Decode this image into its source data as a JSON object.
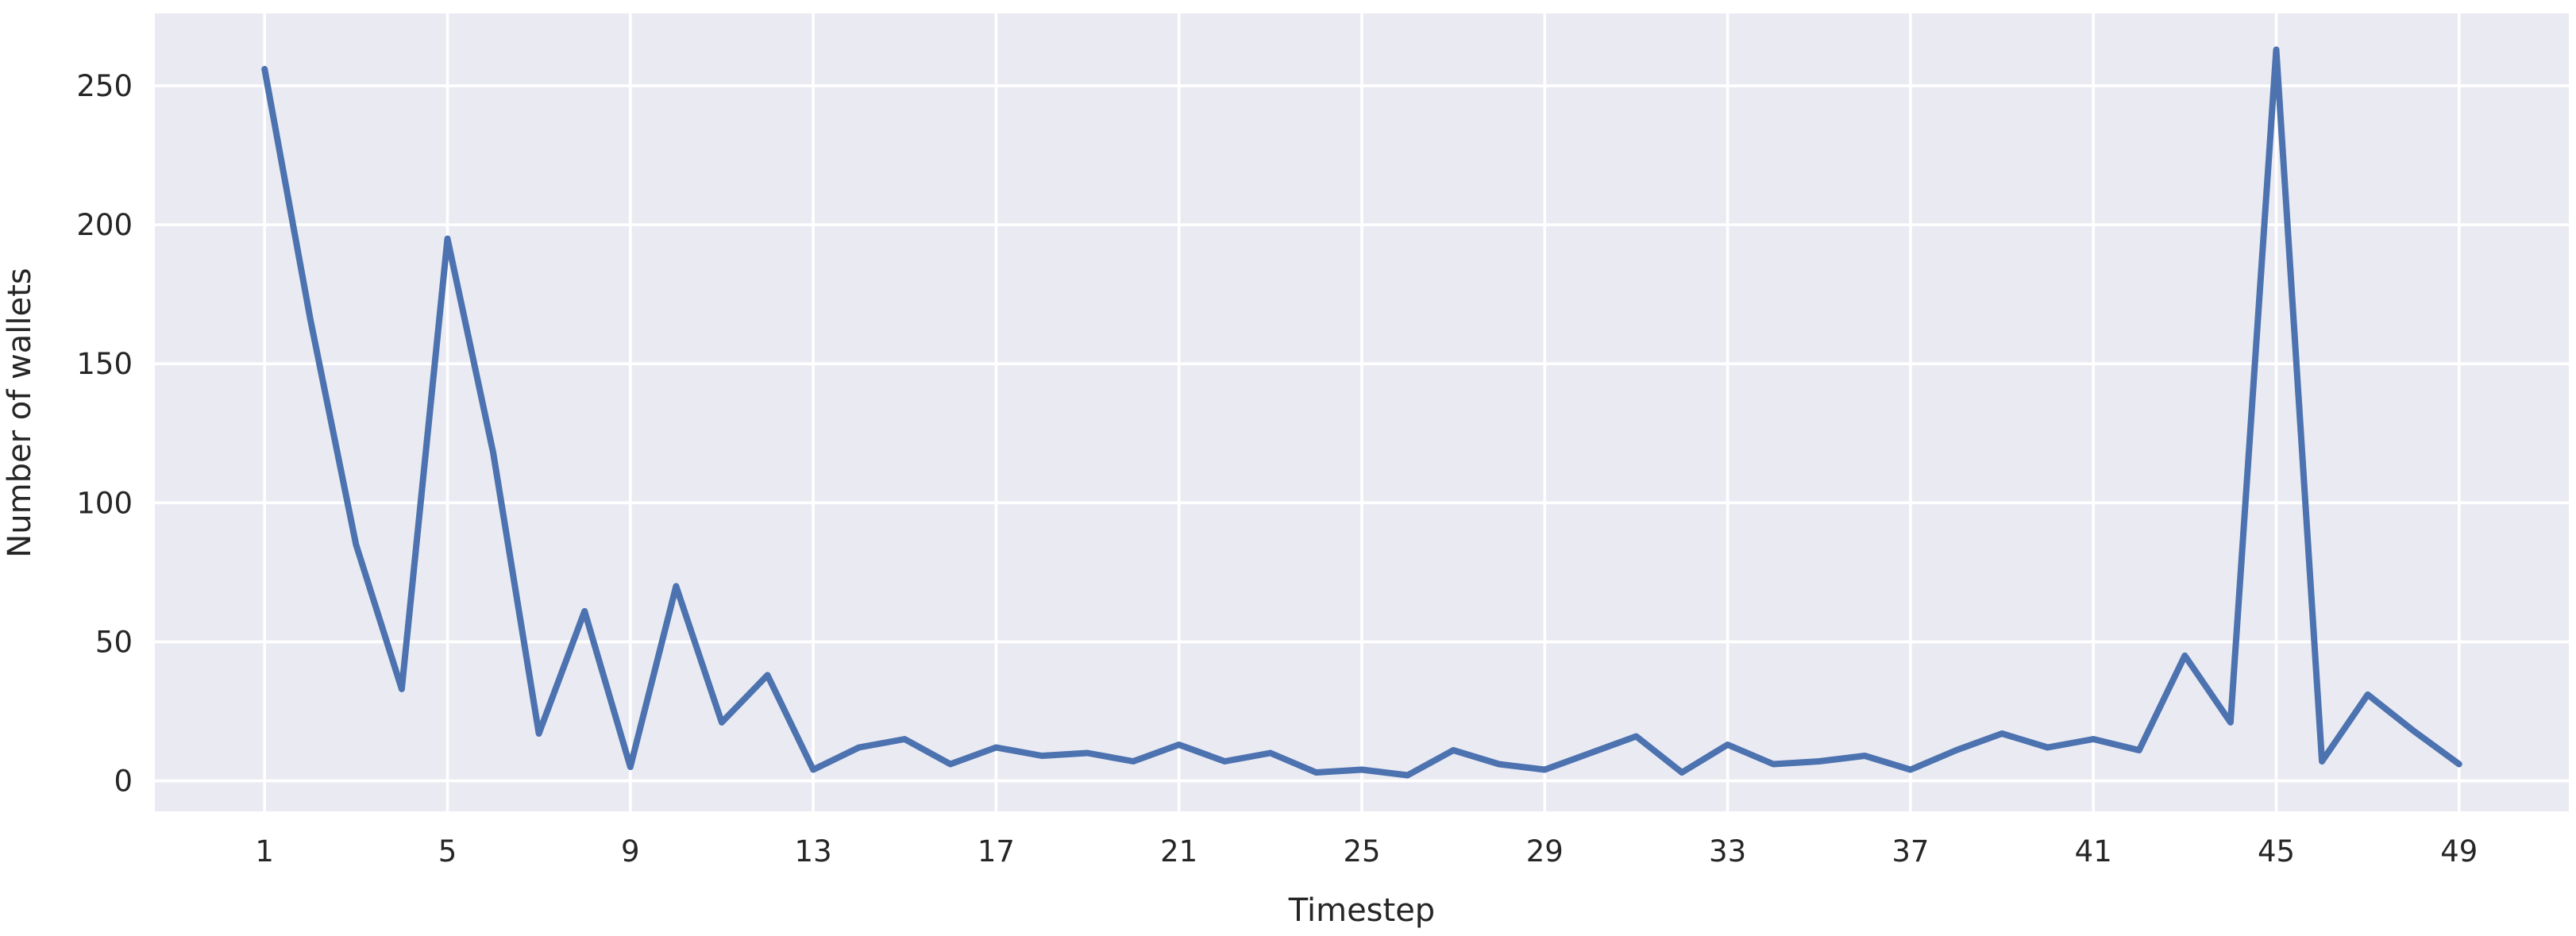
{
  "figure": {
    "background_color": "#ffffff",
    "plot_background_color": "#eaeaf2",
    "grid_color": "#ffffff",
    "line_color": "#4c72b0",
    "text_color": "#262626"
  },
  "chart_data": {
    "type": "line",
    "title": "",
    "xlabel": "Timestep",
    "ylabel": "Number of wallets",
    "x": [
      1,
      2,
      3,
      4,
      5,
      6,
      7,
      8,
      9,
      10,
      11,
      12,
      13,
      14,
      15,
      16,
      17,
      18,
      19,
      20,
      21,
      22,
      23,
      24,
      25,
      26,
      27,
      28,
      29,
      30,
      31,
      32,
      33,
      34,
      35,
      36,
      37,
      38,
      39,
      40,
      41,
      42,
      43,
      44,
      45,
      46,
      47,
      48,
      49
    ],
    "y": [
      256,
      166,
      85,
      33,
      195,
      118,
      17,
      61,
      5,
      70,
      21,
      38,
      4,
      12,
      15,
      6,
      12,
      9,
      10,
      7,
      13,
      7,
      10,
      3,
      4,
      2,
      11,
      6,
      4,
      10,
      16,
      3,
      13,
      6,
      7,
      9,
      4,
      11,
      17,
      12,
      15,
      11,
      45,
      21,
      263,
      7,
      31,
      18,
      6
    ],
    "x_ticks": [
      1,
      5,
      9,
      13,
      17,
      21,
      25,
      29,
      33,
      37,
      41,
      45,
      49
    ],
    "y_ticks": [
      0,
      50,
      100,
      150,
      200,
      250
    ],
    "xlim": [
      -1.4,
      51.4
    ],
    "ylim": [
      -11,
      276
    ],
    "grid": true,
    "legend_position": "none",
    "series_name": "Number of wallets"
  }
}
